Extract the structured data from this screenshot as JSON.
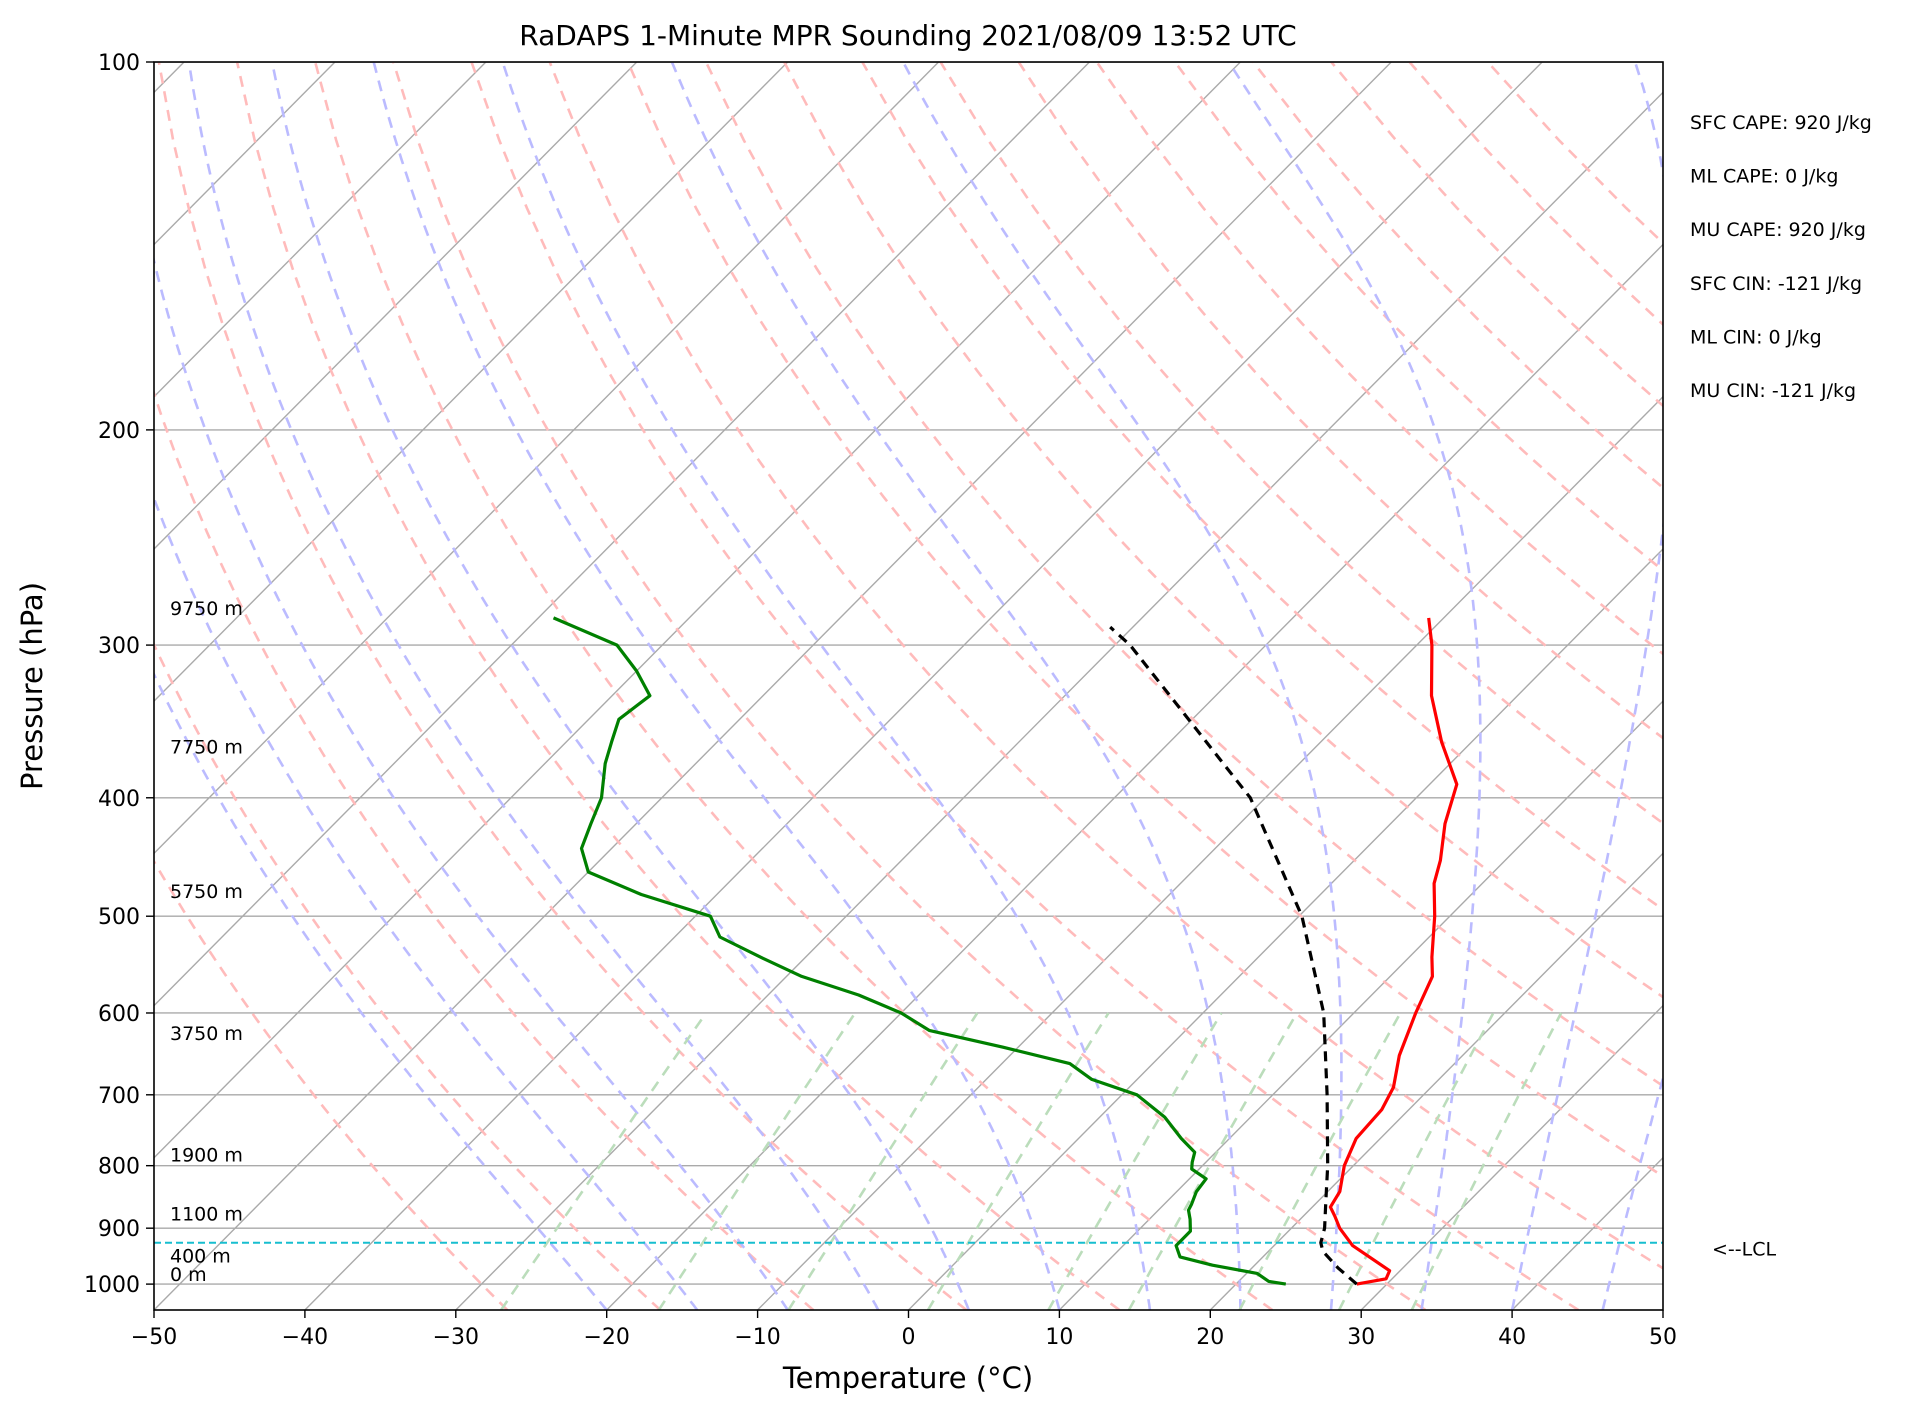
{
  "chart_data": {
    "type": "line",
    "title": "RaDAPS 1-Minute MPR Sounding 2021/08/09 13:52 UTC",
    "xlabel": "Temperature (°C)",
    "ylabel": "Pressure (hPa)",
    "xlim": [
      -50,
      50
    ],
    "ylim": [
      1050,
      100
    ],
    "y_scale": "log",
    "skew": true,
    "grid": true,
    "x_ticks": [
      -50,
      -40,
      -30,
      -20,
      -10,
      0,
      10,
      20,
      30,
      40,
      50
    ],
    "x_tick_labels": [
      "−50",
      "−40",
      "−30",
      "−20",
      "−10",
      "0",
      "10",
      "20",
      "30",
      "40",
      "50"
    ],
    "y_ticks": [
      100,
      200,
      300,
      400,
      500,
      600,
      700,
      800,
      900,
      1000
    ],
    "y_tick_labels": [
      "100",
      "200",
      "300",
      "400",
      "500",
      "600",
      "700",
      "800",
      "900",
      "1000"
    ],
    "series": [
      {
        "color": "#ff0000",
        "points": [
          [
            1000,
            28
          ],
          [
            990,
            29.6
          ],
          [
            975,
            29.3
          ],
          [
            955,
            27.5
          ],
          [
            930,
            25.2
          ],
          [
            900,
            23.2
          ],
          [
            880,
            22.1
          ],
          [
            865,
            21.2
          ],
          [
            840,
            20.8
          ],
          [
            800,
            19.4
          ],
          [
            760,
            18.4
          ],
          [
            720,
            18.2
          ],
          [
            690,
            17.5
          ],
          [
            650,
            15.8
          ],
          [
            600,
            14.1
          ],
          [
            560,
            12.8
          ],
          [
            540,
            11.5
          ],
          [
            500,
            9.0
          ],
          [
            470,
            6.8
          ],
          [
            450,
            5.7
          ],
          [
            420,
            3.6
          ],
          [
            390,
            1.8
          ],
          [
            360,
            -2.0
          ],
          [
            330,
            -5.7
          ],
          [
            300,
            -9.0
          ],
          [
            285,
            -11.0
          ]
        ]
      },
      {
        "color": "#008000",
        "points": [
          [
            1000,
            23.3
          ],
          [
            995,
            22.0
          ],
          [
            980,
            20.7
          ],
          [
            965,
            17.2
          ],
          [
            950,
            14.5
          ],
          [
            930,
            13.5
          ],
          [
            905,
            13.5
          ],
          [
            885,
            12.7
          ],
          [
            870,
            12.0
          ],
          [
            860,
            11.8
          ],
          [
            840,
            11.3
          ],
          [
            820,
            11.1
          ],
          [
            805,
            9.5
          ],
          [
            795,
            9.1
          ],
          [
            780,
            8.6
          ],
          [
            760,
            6.8
          ],
          [
            730,
            4.3
          ],
          [
            700,
            1.0
          ],
          [
            680,
            -3.0
          ],
          [
            660,
            -5.5
          ],
          [
            640,
            -11.0
          ],
          [
            620,
            -17.0
          ],
          [
            600,
            -20.0
          ],
          [
            580,
            -24.0
          ],
          [
            560,
            -29.0
          ],
          [
            540,
            -33.0
          ],
          [
            520,
            -37.0
          ],
          [
            500,
            -39.0
          ],
          [
            480,
            -45.0
          ],
          [
            460,
            -50.0
          ],
          [
            440,
            -52.0
          ],
          [
            420,
            -53.0
          ],
          [
            400,
            -54.0
          ],
          [
            375,
            -56.0
          ],
          [
            360,
            -57.0
          ],
          [
            345,
            -58.0
          ],
          [
            330,
            -57.5
          ],
          [
            315,
            -60.0
          ],
          [
            300,
            -63.0
          ],
          [
            285,
            -69.0
          ]
        ]
      },
      {
        "color": "#000000",
        "dashed": true,
        "points": [
          [
            1000,
            28
          ],
          [
            970,
            25.7
          ],
          [
            940,
            23.6
          ],
          [
            925,
            22.9
          ],
          [
            900,
            22.2
          ],
          [
            850,
            20.3
          ],
          [
            800,
            18.3
          ],
          [
            700,
            13.6
          ],
          [
            600,
            8.0
          ],
          [
            500,
            0.2
          ],
          [
            400,
            -11.0
          ],
          [
            300,
            -29.0
          ],
          [
            290,
            -31.5
          ]
        ]
      }
    ],
    "lcl_hpa": 925,
    "lcl_label": "<--LCL",
    "height_labels": [
      {
        "p": 285,
        "text": "9750 m"
      },
      {
        "p": 370,
        "text": "7750 m"
      },
      {
        "p": 486,
        "text": "5750 m"
      },
      {
        "p": 635,
        "text": "3750 m"
      },
      {
        "p": 798,
        "text": "1900 m"
      },
      {
        "p": 892,
        "text": "1100 m"
      },
      {
        "p": 966,
        "text": "400 m"
      },
      {
        "p": 1000,
        "text": "0 m"
      }
    ],
    "stats": [
      "SFC CAPE: 920 J/kg",
      "ML CAPE: 0 J/kg",
      "MU CAPE: 920 J/kg",
      "SFC CIN: -121 J/kg",
      "ML CIN: 0 J/kg",
      "MU CIN: -121 J/kg"
    ],
    "reference_lines": {
      "dry_adiabat_color": "#ffbbbb",
      "moist_adiabat_color": "#bbbbff",
      "mixing_ratio_color": "#bbddbb",
      "isotherm_color": "#aaaaaa"
    }
  }
}
